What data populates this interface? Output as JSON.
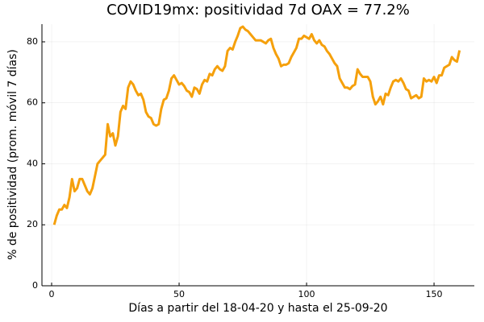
{
  "chart_data": {
    "type": "line",
    "title": "COVID19mx: positividad 7d OAX = 77.2%",
    "xlabel": "Días a partir del 18-04-20 y hasta el 25-09-20",
    "ylabel": "% de positividad (prom. móvil 7 días)",
    "x": [
      1,
      2,
      3,
      4,
      5,
      6,
      7,
      8,
      9,
      10,
      11,
      12,
      13,
      14,
      15,
      16,
      17,
      18,
      19,
      20,
      21,
      22,
      23,
      24,
      25,
      26,
      27,
      28,
      29,
      30,
      31,
      32,
      33,
      34,
      35,
      36,
      37,
      38,
      39,
      40,
      41,
      42,
      43,
      44,
      45,
      46,
      47,
      48,
      49,
      50,
      51,
      52,
      53,
      54,
      55,
      56,
      57,
      58,
      59,
      60,
      61,
      62,
      63,
      64,
      65,
      66,
      67,
      68,
      69,
      70,
      71,
      72,
      73,
      74,
      75,
      76,
      77,
      78,
      79,
      80,
      81,
      82,
      83,
      84,
      85,
      86,
      87,
      88,
      89,
      90,
      91,
      92,
      93,
      94,
      95,
      96,
      97,
      98,
      99,
      100,
      101,
      102,
      103,
      104,
      105,
      106,
      107,
      108,
      109,
      110,
      111,
      112,
      113,
      114,
      115,
      116,
      117,
      118,
      119,
      120,
      121,
      122,
      123,
      124,
      125,
      126,
      127,
      128,
      129,
      130,
      131,
      132,
      133,
      134,
      135,
      136,
      137,
      138,
      139,
      140,
      141,
      142,
      143,
      144,
      145,
      146,
      147,
      148,
      149,
      150,
      151,
      152,
      153,
      154,
      155,
      156,
      157,
      158,
      159,
      160
    ],
    "series": [
      {
        "color": "#f5a00c",
        "values": [
          20,
          23,
          25,
          25,
          26.5,
          25.5,
          29,
          35,
          31,
          32,
          35,
          35,
          33,
          31,
          30,
          32,
          36,
          40,
          41,
          42,
          43,
          53,
          49,
          50,
          46,
          49,
          57,
          59,
          58,
          65,
          67,
          66,
          64,
          62.5,
          63,
          61,
          57,
          55.5,
          55,
          53,
          52.5,
          53,
          58,
          61,
          61.5,
          64,
          68,
          69,
          67.5,
          66,
          66.5,
          65.5,
          64,
          63.5,
          62,
          65,
          64.5,
          63,
          66,
          67.5,
          67,
          69.5,
          69,
          71,
          72,
          71,
          70.5,
          72,
          77,
          78,
          77.5,
          80,
          82,
          84.5,
          85,
          84,
          83.5,
          82.5,
          81.5,
          80.5,
          80.5,
          80.5,
          80,
          79.5,
          80.5,
          81,
          78,
          76,
          74.5,
          72,
          72.5,
          72.5,
          73,
          75,
          76.5,
          78,
          81,
          81,
          82,
          81.5,
          81,
          82.5,
          80.5,
          79.5,
          80.5,
          79,
          78.5,
          77,
          76,
          74.5,
          73,
          72,
          68,
          66.5,
          65,
          65,
          64.5,
          65.5,
          66,
          71,
          69.5,
          68.5,
          68.5,
          68.5,
          67,
          62,
          59.5,
          60.5,
          62,
          59.5,
          63,
          62.5,
          65,
          67,
          67.5,
          67,
          68,
          66.5,
          64.5,
          64,
          61.5,
          62,
          62.5,
          61.5,
          62,
          68,
          67,
          67.5,
          67,
          68.5,
          66.5,
          69,
          69,
          71.5,
          72,
          72.5,
          75,
          74,
          73.5,
          77.2
        ]
      }
    ],
    "xlim": [
      -3.8,
      165.8
    ],
    "xticks": [
      0,
      50,
      100,
      150
    ],
    "ylim": [
      0,
      85.8
    ],
    "yticks": [
      0,
      20,
      40,
      60,
      80
    ],
    "grid": true
  }
}
